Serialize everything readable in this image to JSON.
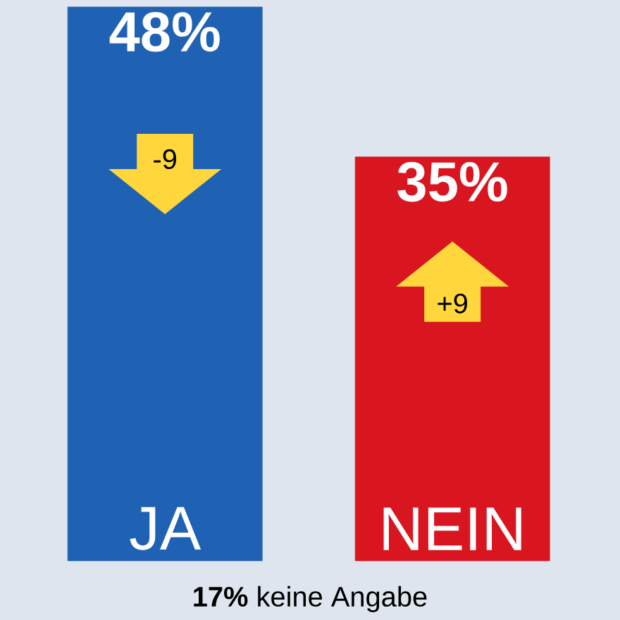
{
  "chart_data": {
    "type": "bar",
    "categories": [
      "JA",
      "NEIN"
    ],
    "values": [
      48,
      35
    ],
    "colors": [
      "#1f62b4",
      "#d9161f"
    ],
    "value_labels": [
      "48%",
      "35%"
    ],
    "annotations": [
      "-9",
      "+9",
      "**17%** keine Angabe"
    ]
  }
}
